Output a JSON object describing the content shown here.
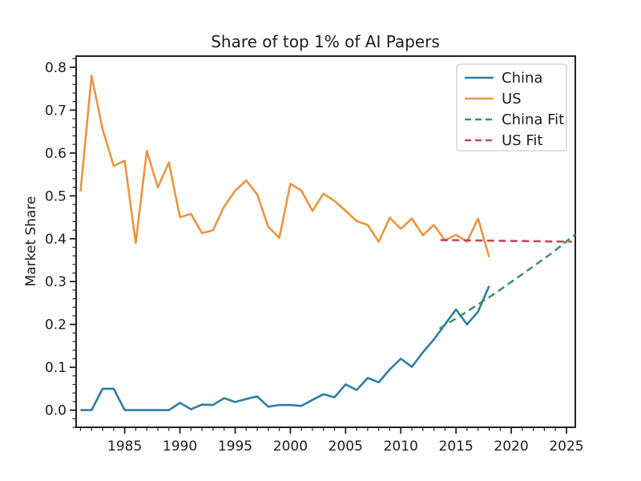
{
  "figure": {
    "background": "#ffffff",
    "axes_color": "#222222",
    "text_color": "#1d1d1d"
  },
  "chart_data": {
    "type": "line",
    "title": "Share of top 1% of AI Papers",
    "xlabel": "",
    "ylabel": "Market Share",
    "xlim": [
      1980.6,
      2025.8
    ],
    "ylim": [
      -0.04,
      0.826
    ],
    "grid": false,
    "x_ticks": [
      1985,
      1990,
      1995,
      2000,
      2005,
      2010,
      2015,
      2020,
      2025
    ],
    "x_tick_labels": [
      "1985",
      "1990",
      "1995",
      "2000",
      "2005",
      "2010",
      "2015",
      "2020",
      "2025"
    ],
    "y_ticks": [
      0.0,
      0.1,
      0.2,
      0.3,
      0.4,
      0.5,
      0.6,
      0.7,
      0.8
    ],
    "y_tick_labels": [
      "0.0",
      "0.1",
      "0.2",
      "0.3",
      "0.4",
      "0.5",
      "0.6",
      "0.7",
      "0.8"
    ],
    "x_minor_step": 1,
    "y_minor_step": 0.02,
    "legend": {
      "position": "upper right",
      "entries": [
        "China",
        "US",
        "China Fit",
        "US Fit"
      ]
    },
    "series": [
      {
        "name": "China",
        "color": "#2e7fa0",
        "style": "solid",
        "x": [
          1981,
          1982,
          1983,
          1984,
          1985,
          1986,
          1987,
          1988,
          1989,
          1990,
          1991,
          1992,
          1993,
          1994,
          1995,
          1996,
          1997,
          1998,
          1999,
          2000,
          2001,
          2002,
          2003,
          2004,
          2005,
          2006,
          2007,
          2008,
          2009,
          2010,
          2011,
          2012,
          2013,
          2014,
          2015,
          2016,
          2017,
          2018
        ],
        "values": [
          0.0,
          0.0,
          0.05,
          0.05,
          0.0,
          0.0,
          0.0,
          0.0,
          0.0,
          0.017,
          0.002,
          0.013,
          0.012,
          0.028,
          0.019,
          0.026,
          0.032,
          0.008,
          0.012,
          0.012,
          0.01,
          0.024,
          0.037,
          0.03,
          0.06,
          0.047,
          0.075,
          0.065,
          0.095,
          0.12,
          0.101,
          0.135,
          0.165,
          0.2,
          0.235,
          0.2,
          0.23,
          0.29
        ]
      },
      {
        "name": "US",
        "color": "#ec9440",
        "style": "solid",
        "x": [
          1981,
          1982,
          1983,
          1984,
          1985,
          1986,
          1987,
          1988,
          1989,
          1990,
          1991,
          1992,
          1993,
          1994,
          1995,
          1996,
          1997,
          1998,
          1999,
          2000,
          2001,
          2002,
          2003,
          2004,
          2005,
          2006,
          2007,
          2008,
          2009,
          2010,
          2011,
          2012,
          2013,
          2014,
          2015,
          2016,
          2017,
          2018
        ],
        "values": [
          0.51,
          0.78,
          0.655,
          0.57,
          0.582,
          0.39,
          0.605,
          0.52,
          0.578,
          0.45,
          0.458,
          0.413,
          0.42,
          0.475,
          0.512,
          0.536,
          0.503,
          0.428,
          0.402,
          0.528,
          0.512,
          0.465,
          0.505,
          0.488,
          0.465,
          0.441,
          0.432,
          0.393,
          0.449,
          0.423,
          0.447,
          0.408,
          0.432,
          0.396,
          0.409,
          0.393,
          0.447,
          0.357
        ]
      },
      {
        "name": "China Fit",
        "color": "#3f9464",
        "style": "dashed",
        "x": [
          2013.5,
          2016,
          2018.5,
          2021,
          2023.5,
          2025.8
        ],
        "values": [
          0.19,
          0.23,
          0.272,
          0.317,
          0.363,
          0.41
        ]
      },
      {
        "name": "US Fit",
        "color": "#c94556",
        "style": "dashed",
        "x": [
          2013.6,
          2025.5
        ],
        "values": [
          0.397,
          0.393
        ]
      }
    ]
  }
}
